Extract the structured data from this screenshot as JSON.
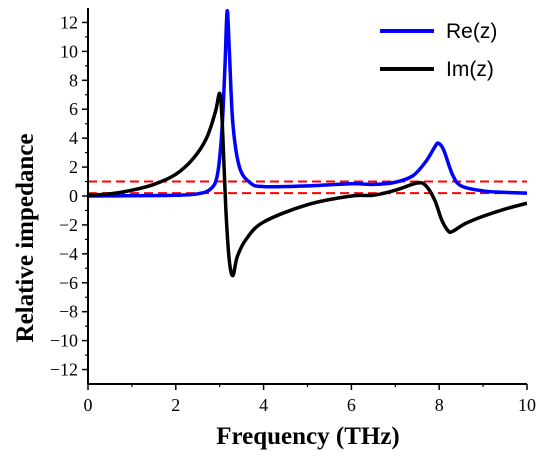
{
  "chart_data": {
    "type": "line",
    "title": "",
    "xlabel": "Frequency (THz)",
    "ylabel": "Relative impedance",
    "xlim": [
      0,
      10
    ],
    "ylim": [
      -13,
      13
    ],
    "xticks": [
      0,
      2,
      4,
      6,
      8,
      10
    ],
    "yticks": [
      -12,
      -10,
      -8,
      -6,
      -4,
      -2,
      0,
      2,
      4,
      6,
      8,
      10,
      12
    ],
    "grid": false,
    "legend_position": "top-right",
    "series": [
      {
        "name": "Re(z)",
        "color": "#0000ff",
        "points": [
          [
            0,
            0.0
          ],
          [
            1.0,
            0.02
          ],
          [
            2.0,
            0.05
          ],
          [
            2.5,
            0.15
          ],
          [
            2.8,
            0.5
          ],
          [
            2.95,
            1.5
          ],
          [
            3.05,
            4.5
          ],
          [
            3.12,
            9.0
          ],
          [
            3.17,
            12.8
          ],
          [
            3.22,
            10.0
          ],
          [
            3.3,
            5.0
          ],
          [
            3.45,
            2.0
          ],
          [
            3.7,
            0.9
          ],
          [
            4.0,
            0.65
          ],
          [
            5.0,
            0.7
          ],
          [
            6.0,
            0.85
          ],
          [
            6.5,
            0.8
          ],
          [
            7.0,
            0.95
          ],
          [
            7.4,
            1.4
          ],
          [
            7.7,
            2.4
          ],
          [
            7.9,
            3.4
          ],
          [
            7.98,
            3.65
          ],
          [
            8.1,
            3.2
          ],
          [
            8.3,
            1.5
          ],
          [
            8.5,
            0.7
          ],
          [
            9.0,
            0.35
          ],
          [
            9.5,
            0.25
          ],
          [
            10.0,
            0.2
          ]
        ]
      },
      {
        "name": "Im(z)",
        "color": "#000000",
        "points": [
          [
            0,
            0.05
          ],
          [
            0.5,
            0.15
          ],
          [
            1.0,
            0.4
          ],
          [
            1.5,
            0.8
          ],
          [
            2.0,
            1.5
          ],
          [
            2.4,
            2.6
          ],
          [
            2.7,
            4.0
          ],
          [
            2.9,
            5.8
          ],
          [
            3.0,
            7.1
          ],
          [
            3.05,
            5.5
          ],
          [
            3.1,
            2.0
          ],
          [
            3.15,
            -1.5
          ],
          [
            3.22,
            -4.5
          ],
          [
            3.3,
            -5.5
          ],
          [
            3.4,
            -4.2
          ],
          [
            3.6,
            -3.0
          ],
          [
            4.0,
            -1.8
          ],
          [
            5.0,
            -0.6
          ],
          [
            6.0,
            0.0
          ],
          [
            6.5,
            0.05
          ],
          [
            7.0,
            0.4
          ],
          [
            7.5,
            0.9
          ],
          [
            7.7,
            0.7
          ],
          [
            7.9,
            -0.3
          ],
          [
            8.05,
            -1.6
          ],
          [
            8.2,
            -2.4
          ],
          [
            8.3,
            -2.45
          ],
          [
            8.6,
            -1.9
          ],
          [
            9.0,
            -1.4
          ],
          [
            9.5,
            -0.9
          ],
          [
            10.0,
            -0.5
          ]
        ]
      }
    ],
    "reference_lines": [
      {
        "y": 1.0,
        "color": "#ff0000",
        "style": "dashed"
      },
      {
        "y": 0.2,
        "color": "#ff0000",
        "style": "dashed"
      }
    ]
  }
}
